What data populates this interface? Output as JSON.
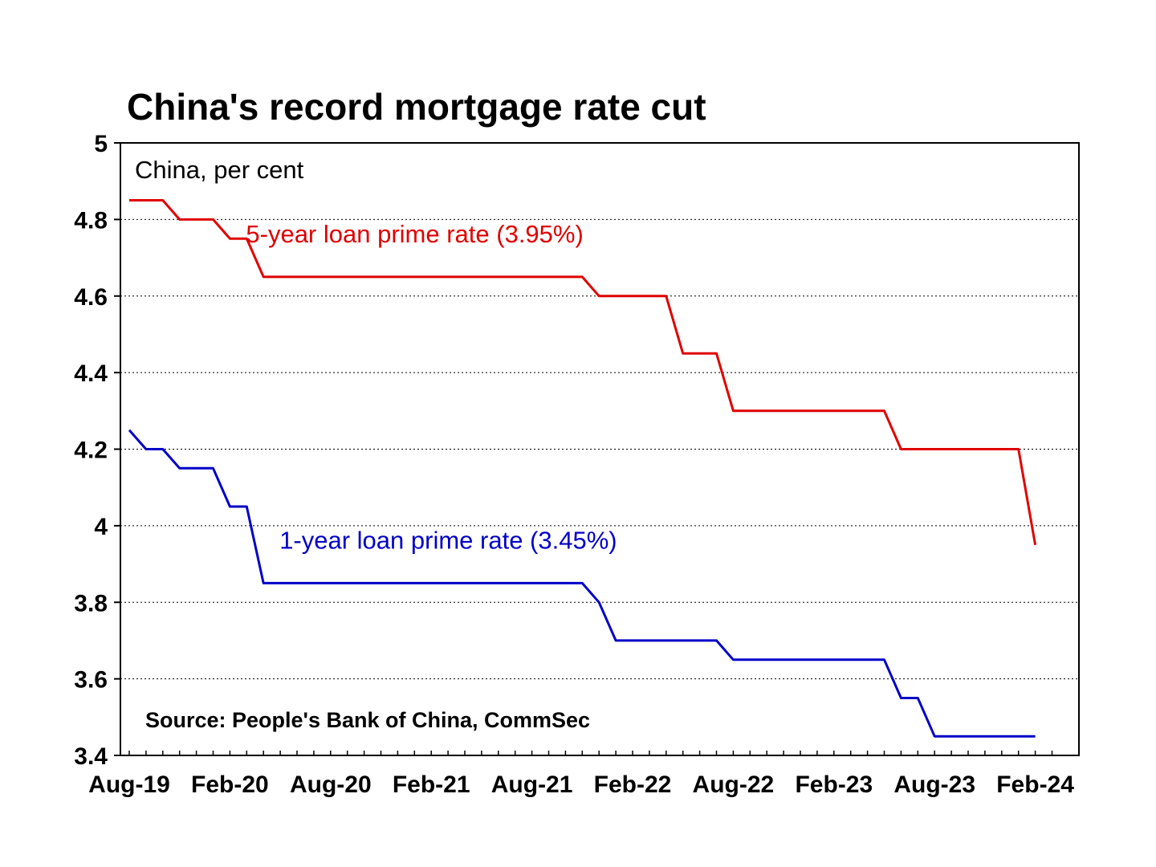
{
  "chart_data": {
    "type": "line",
    "title": "China's record mortgage rate cut",
    "subtitle": "China, per cent",
    "source": "Source: People's Bank of China, CommSec",
    "ylim": [
      3.4,
      5.0
    ],
    "y_ticks": [
      "3.4",
      "3.6",
      "3.8",
      "4",
      "4.2",
      "4.4",
      "4.6",
      "4.8",
      "5"
    ],
    "x_tick_labels": [
      "Aug-19",
      "Feb-20",
      "Aug-20",
      "Feb-21",
      "Aug-21",
      "Feb-22",
      "Aug-22",
      "Feb-23",
      "Aug-23",
      "Feb-24"
    ],
    "x_range": [
      "2019-08",
      "2024-03"
    ],
    "grid": {
      "horizontal": true,
      "style": "dotted"
    },
    "series": [
      {
        "name": "5-year loan prime rate (3.95%)",
        "color": "#e00000",
        "label_anchor": {
          "x": "2020-02",
          "y": 4.74
        },
        "points": [
          [
            "2019-08",
            4.85
          ],
          [
            "2019-10",
            4.85
          ],
          [
            "2019-11",
            4.8
          ],
          [
            "2020-01",
            4.8
          ],
          [
            "2020-02",
            4.75
          ],
          [
            "2020-03",
            4.75
          ],
          [
            "2020-04",
            4.65
          ],
          [
            "2021-11",
            4.65
          ],
          [
            "2021-12",
            4.6
          ],
          [
            "2022-04",
            4.6
          ],
          [
            "2022-05",
            4.45
          ],
          [
            "2022-07",
            4.45
          ],
          [
            "2022-08",
            4.3
          ],
          [
            "2023-05",
            4.3
          ],
          [
            "2023-06",
            4.2
          ],
          [
            "2024-01",
            4.2
          ],
          [
            "2024-02",
            3.95
          ]
        ]
      },
      {
        "name": "1-year loan prime rate (3.45%)",
        "color": "#0000c8",
        "label_anchor": {
          "x": "2020-04",
          "y": 3.94
        },
        "points": [
          [
            "2019-08",
            4.25
          ],
          [
            "2019-09",
            4.2
          ],
          [
            "2019-10",
            4.2
          ],
          [
            "2019-11",
            4.15
          ],
          [
            "2020-01",
            4.15
          ],
          [
            "2020-02",
            4.05
          ],
          [
            "2020-03",
            4.05
          ],
          [
            "2020-04",
            3.85
          ],
          [
            "2021-11",
            3.85
          ],
          [
            "2021-12",
            3.8
          ],
          [
            "2022-01",
            3.7
          ],
          [
            "2022-07",
            3.7
          ],
          [
            "2022-08",
            3.65
          ],
          [
            "2023-05",
            3.65
          ],
          [
            "2023-06",
            3.55
          ],
          [
            "2023-07",
            3.55
          ],
          [
            "2023-08",
            3.45
          ],
          [
            "2024-02",
            3.45
          ]
        ]
      }
    ]
  }
}
